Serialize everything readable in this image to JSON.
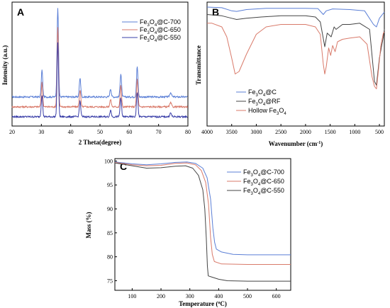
{
  "chart_data": [
    {
      "id": "A",
      "panel_label": "A",
      "type": "line",
      "xlabel": "2 Theta(degree)",
      "ylabel": "Intensity (a.u.)",
      "xlim": [
        20,
        80
      ],
      "ylim": [
        0,
        1
      ],
      "xticks": [
        20,
        30,
        40,
        50,
        60,
        70,
        80
      ],
      "yticks": [],
      "legend_position": "top-right",
      "peaks": [
        {
          "x": 30.2,
          "h": 0.3,
          "w": 0.35
        },
        {
          "x": 35.6,
          "h": 1.0,
          "w": 0.35
        },
        {
          "x": 43.2,
          "h": 0.21,
          "w": 0.35
        },
        {
          "x": 53.6,
          "h": 0.09,
          "w": 0.35
        },
        {
          "x": 57.1,
          "h": 0.26,
          "w": 0.35
        },
        {
          "x": 62.7,
          "h": 0.34,
          "w": 0.35
        },
        {
          "x": 74.1,
          "h": 0.05,
          "w": 0.4
        }
      ],
      "series": [
        {
          "name": "Fe3O4@C-700",
          "legend_main": "Fe",
          "legend_sub1": "3",
          "legend_mid": "O",
          "legend_sub2": "4",
          "legend_tail": "@C-700",
          "color": "#5b7fd6",
          "baseline": 0.235,
          "scale": 1.0,
          "noise": 0.015
        },
        {
          "name": "Fe3O4@C-650",
          "legend_main": "Fe",
          "legend_sub1": "3",
          "legend_mid": "O",
          "legend_sub2": "4",
          "legend_tail": "@C-650",
          "color": "#d97a6a",
          "baseline": 0.155,
          "scale": 0.9,
          "noise": 0.015
        },
        {
          "name": "Fe3O4@C-550",
          "legend_main": "Fe",
          "legend_sub1": "3",
          "legend_mid": "O",
          "legend_sub2": "4",
          "legend_tail": "@C-550",
          "color": "#3a3fa8",
          "baseline": 0.075,
          "scale": 0.82,
          "noise": 0.015
        }
      ]
    },
    {
      "id": "B",
      "panel_label": "B",
      "type": "line",
      "xlabel": "Wavenumber (cm",
      "xlabel_sup": "-1",
      "xlabel_tail": ")",
      "ylabel": "Transmittance",
      "xlim": [
        4000,
        400
      ],
      "ylim": [
        0,
        1
      ],
      "xticks": [
        4000,
        3500,
        3000,
        2500,
        2000,
        1500,
        1000,
        500
      ],
      "yticks": [],
      "legend_position": "bottom-left",
      "series": [
        {
          "name": "Fe3O4@C",
          "legend_main": "Fe",
          "legend_sub1": "3",
          "legend_mid": "O",
          "legend_sub2": "4",
          "legend_tail": "@C",
          "color": "#5b7fd6",
          "points": [
            [
              4000,
              0.96
            ],
            [
              3700,
              0.955
            ],
            [
              3500,
              0.93
            ],
            [
              3400,
              0.925
            ],
            [
              3200,
              0.94
            ],
            [
              2800,
              0.95
            ],
            [
              2000,
              0.95
            ],
            [
              1750,
              0.948
            ],
            [
              1640,
              0.9
            ],
            [
              1580,
              0.93
            ],
            [
              1450,
              0.945
            ],
            [
              1100,
              0.94
            ],
            [
              800,
              0.93
            ],
            [
              620,
              0.82
            ],
            [
              560,
              0.8
            ],
            [
              500,
              0.87
            ],
            [
              400,
              0.92
            ]
          ]
        },
        {
          "name": "Fe3O4@RF",
          "legend_main": "Fe",
          "legend_sub1": "3",
          "legend_mid": "O",
          "legend_sub2": "4",
          "legend_tail": "@RF",
          "color": "#444444",
          "points": [
            [
              4000,
              0.9
            ],
            [
              3700,
              0.89
            ],
            [
              3500,
              0.87
            ],
            [
              3400,
              0.86
            ],
            [
              3200,
              0.87
            ],
            [
              2900,
              0.88
            ],
            [
              2500,
              0.89
            ],
            [
              2000,
              0.89
            ],
            [
              1800,
              0.88
            ],
            [
              1700,
              0.84
            ],
            [
              1610,
              0.64
            ],
            [
              1560,
              0.75
            ],
            [
              1480,
              0.72
            ],
            [
              1420,
              0.8
            ],
            [
              1380,
              0.78
            ],
            [
              1250,
              0.82
            ],
            [
              1100,
              0.82
            ],
            [
              900,
              0.83
            ],
            [
              700,
              0.78
            ],
            [
              600,
              0.36
            ],
            [
              560,
              0.33
            ],
            [
              500,
              0.55
            ],
            [
              420,
              0.72
            ],
            [
              400,
              0.78
            ]
          ]
        },
        {
          "name": "Hollow Fe3O4",
          "legend_main": "Hollow Fe",
          "legend_sub1": "3",
          "legend_mid": "O",
          "legend_sub2": "4",
          "legend_tail": "",
          "color": "#d97a6a",
          "points": [
            [
              4000,
              0.83
            ],
            [
              3900,
              0.83
            ],
            [
              3700,
              0.8
            ],
            [
              3600,
              0.72
            ],
            [
              3500,
              0.55
            ],
            [
              3430,
              0.42
            ],
            [
              3350,
              0.44
            ],
            [
              3200,
              0.58
            ],
            [
              3000,
              0.74
            ],
            [
              2800,
              0.8
            ],
            [
              2500,
              0.82
            ],
            [
              2000,
              0.82
            ],
            [
              1800,
              0.8
            ],
            [
              1700,
              0.74
            ],
            [
              1640,
              0.5
            ],
            [
              1610,
              0.42
            ],
            [
              1580,
              0.48
            ],
            [
              1530,
              0.63
            ],
            [
              1490,
              0.57
            ],
            [
              1450,
              0.65
            ],
            [
              1400,
              0.6
            ],
            [
              1350,
              0.68
            ],
            [
              1250,
              0.7
            ],
            [
              1100,
              0.71
            ],
            [
              900,
              0.72
            ],
            [
              750,
              0.66
            ],
            [
              650,
              0.4
            ],
            [
              600,
              0.32
            ],
            [
              560,
              0.3
            ],
            [
              520,
              0.45
            ],
            [
              470,
              0.65
            ],
            [
              420,
              0.75
            ],
            [
              400,
              0.76
            ]
          ]
        }
      ]
    },
    {
      "id": "C",
      "panel_label": "C",
      "type": "line",
      "xlabel": "Temperature (",
      "xlabel_sup": "o",
      "xlabel_tail": "C)",
      "ylabel": "Mass (%)",
      "xlim": [
        40,
        650
      ],
      "ylim": [
        73,
        100.5
      ],
      "xticks": [
        100,
        200,
        300,
        400,
        500,
        600
      ],
      "yticks": [
        75,
        80,
        85,
        90,
        95,
        100
      ],
      "legend_position": "top-right",
      "series": [
        {
          "name": "Fe3O4@C-700",
          "legend_main": "Fe",
          "legend_sub1": "3",
          "legend_mid": "O",
          "legend_sub2": "4",
          "legend_tail": "@C-700",
          "color": "#5b7fd6",
          "points": [
            [
              40,
              99.8
            ],
            [
              100,
              99.4
            ],
            [
              150,
              99.2
            ],
            [
              200,
              99.4
            ],
            [
              250,
              99.7
            ],
            [
              290,
              99.8
            ],
            [
              320,
              99.5
            ],
            [
              345,
              98.5
            ],
            [
              360,
              96.5
            ],
            [
              372,
              92
            ],
            [
              380,
              86
            ],
            [
              386,
              83
            ],
            [
              392,
              81.6
            ],
            [
              410,
              81
            ],
            [
              450,
              80.5
            ],
            [
              500,
              80.4
            ],
            [
              650,
              80.4
            ]
          ]
        },
        {
          "name": "Fe3O4@C-650",
          "legend_main": "Fe",
          "legend_sub1": "3",
          "legend_mid": "O",
          "legend_sub2": "4",
          "legend_tail": "@C-650",
          "color": "#d97a6a",
          "points": [
            [
              40,
              99.7
            ],
            [
              100,
              99.2
            ],
            [
              150,
              99.0
            ],
            [
              200,
              99.1
            ],
            [
              250,
              99.5
            ],
            [
              290,
              99.6
            ],
            [
              320,
              99.2
            ],
            [
              340,
              98.0
            ],
            [
              355,
              95.5
            ],
            [
              365,
              91
            ],
            [
              372,
              84
            ],
            [
              378,
              80.5
            ],
            [
              385,
              79
            ],
            [
              410,
              78.5
            ],
            [
              500,
              78.4
            ],
            [
              650,
              78.4
            ]
          ]
        },
        {
          "name": "Fe3O4@C-550",
          "legend_main": "Fe",
          "legend_sub1": "3",
          "legend_mid": "O",
          "legend_sub2": "4",
          "legend_tail": "@C-550",
          "color": "#444444",
          "points": [
            [
              40,
              99.6
            ],
            [
              100,
              99.0
            ],
            [
              150,
              98.5
            ],
            [
              200,
              98.6
            ],
            [
              250,
              98.9
            ],
            [
              285,
              99.0
            ],
            [
              310,
              98.5
            ],
            [
              330,
              97.0
            ],
            [
              345,
              94
            ],
            [
              352,
              90
            ],
            [
              357,
              84
            ],
            [
              361,
              78
            ],
            [
              364,
              76
            ],
            [
              375,
              75.8
            ],
            [
              400,
              75.3
            ],
            [
              430,
              75
            ],
            [
              500,
              74.9
            ],
            [
              650,
              74.9
            ]
          ]
        }
      ]
    }
  ]
}
